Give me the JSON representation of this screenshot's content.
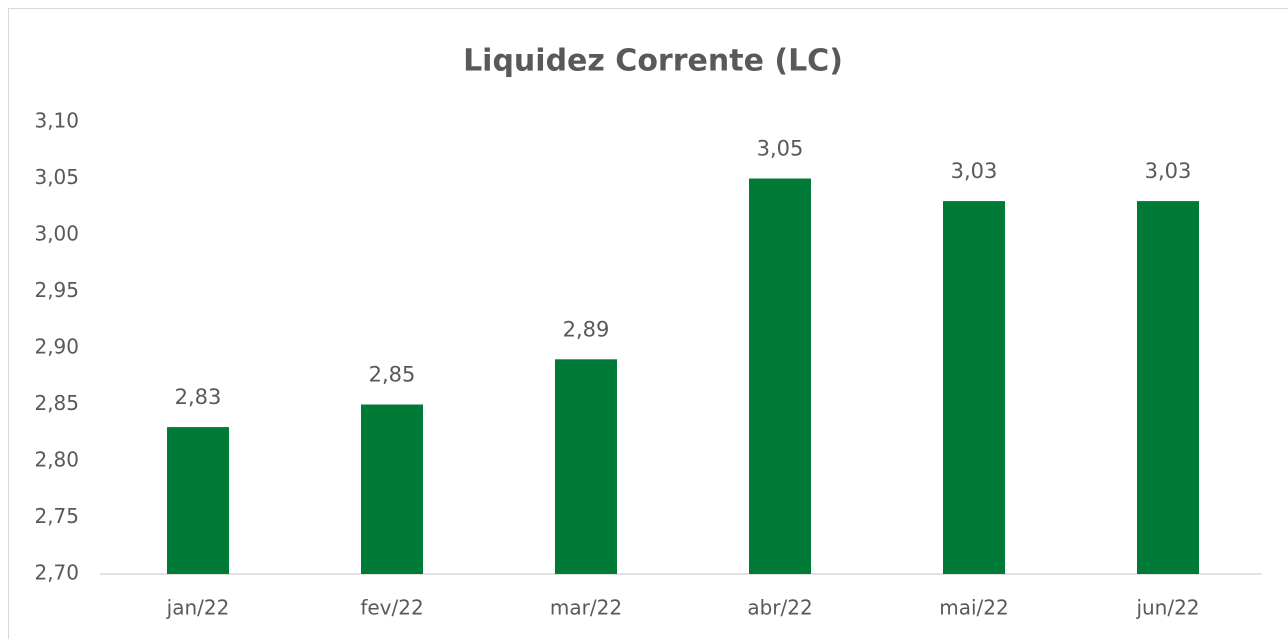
{
  "chart_data": {
    "type": "bar",
    "title": "Liquidez Corrente (LC)",
    "categories": [
      "jan/22",
      "fev/22",
      "mar/22",
      "abr/22",
      "mai/22",
      "jun/22"
    ],
    "values": [
      2.83,
      2.85,
      2.89,
      3.05,
      3.03,
      3.03
    ],
    "value_labels": [
      "2,83",
      "2,85",
      "2,89",
      "3,05",
      "3,03",
      "3,03"
    ],
    "color": "#007a37",
    "ylim": [
      2.7,
      3.1
    ],
    "yticks": [
      {
        "value": 2.7,
        "label": "2,70"
      },
      {
        "value": 2.75,
        "label": "2,75"
      },
      {
        "value": 2.8,
        "label": "2,80"
      },
      {
        "value": 2.85,
        "label": "2,85"
      },
      {
        "value": 2.9,
        "label": "2,90"
      },
      {
        "value": 2.95,
        "label": "2,95"
      },
      {
        "value": 3.0,
        "label": "3,00"
      },
      {
        "value": 3.05,
        "label": "3,05"
      },
      {
        "value": 3.1,
        "label": "3,10"
      }
    ],
    "grid": false
  }
}
